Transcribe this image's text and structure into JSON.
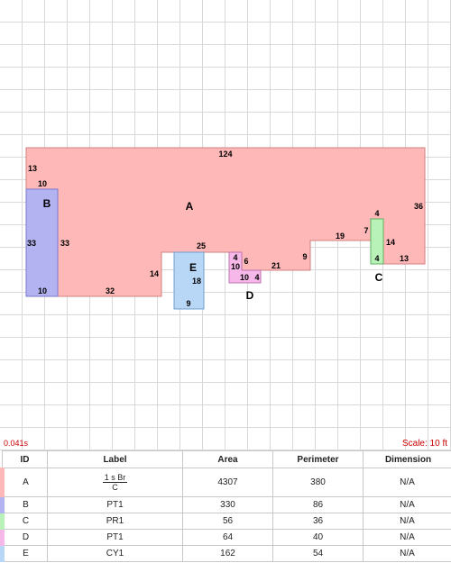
{
  "header": {
    "timer": "0.041s",
    "scale": "Scale: 10 ft"
  },
  "colors": {
    "A": "#ffb8b8",
    "B": "#b3b3f2",
    "C": "#b8f2b8",
    "D": "#f5b8e8",
    "E": "#b8d6f5"
  },
  "areas": {
    "A": {
      "letter": "A",
      "dims": {
        "top": "124",
        "left": "13",
        "left_step": "10",
        "right": "36",
        "bottom_left": "32",
        "notch_left": "14",
        "notch_top": "25",
        "step_d": "4",
        "step_d2": "10",
        "step_d3": "6",
        "bottom_mid": "21",
        "step_mid": "9",
        "bottom_mid2": "19",
        "step_c": "7",
        "c_top": "4",
        "right_low": "14",
        "bottom_right": "13"
      }
    },
    "B": {
      "letter": "B",
      "dims": {
        "top": "10",
        "left": "33",
        "right": "33",
        "bottom": "10"
      }
    },
    "C": {
      "letter": "C",
      "dims": {
        "top": "4",
        "right": "14",
        "bottom": "4"
      }
    },
    "D": {
      "letter": "D",
      "dims": {
        "bottom": "10",
        "right": "4"
      }
    },
    "E": {
      "letter": "E",
      "dims": {
        "right": "18",
        "bottom": "9"
      }
    }
  },
  "table": {
    "headers": [
      "ID",
      "Label",
      "Area",
      "Perimeter",
      "Dimension"
    ],
    "rows": [
      {
        "id": "A",
        "label_num": "1 s Br",
        "label_den": "C",
        "area": "4307",
        "perimeter": "380",
        "dimension": "N/A"
      },
      {
        "id": "B",
        "label": "PT1",
        "area": "330",
        "perimeter": "86",
        "dimension": "N/A"
      },
      {
        "id": "C",
        "label": "PR1",
        "area": "56",
        "perimeter": "36",
        "dimension": "N/A"
      },
      {
        "id": "D",
        "label": "PT1",
        "area": "64",
        "perimeter": "40",
        "dimension": "N/A"
      },
      {
        "id": "E",
        "label": "CY1",
        "area": "162",
        "perimeter": "54",
        "dimension": "N/A"
      }
    ]
  }
}
